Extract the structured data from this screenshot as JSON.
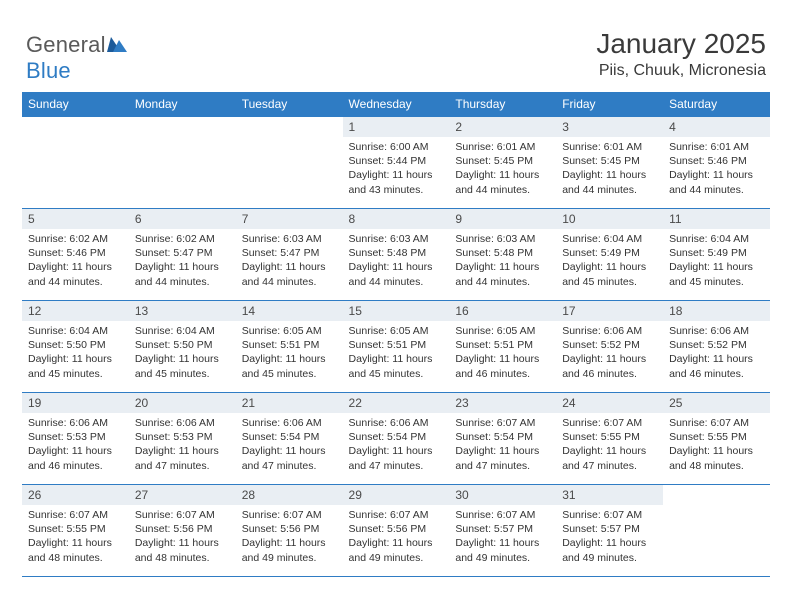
{
  "logo": {
    "word1": "General",
    "word2": "Blue"
  },
  "title": "January 2025",
  "location": "Piis, Chuuk, Micronesia",
  "colors": {
    "header_bg": "#2f7cc4",
    "header_text": "#ffffff",
    "daynum_bg": "#e9eef3",
    "rule": "#2f7cc4",
    "body_text": "#333333",
    "logo_gray": "#5a5a5a",
    "logo_blue": "#2f7cc4"
  },
  "weekdays": [
    "Sunday",
    "Monday",
    "Tuesday",
    "Wednesday",
    "Thursday",
    "Friday",
    "Saturday"
  ],
  "weeks": [
    [
      {
        "n": "",
        "sunrise": "",
        "sunset": "",
        "daylight": ""
      },
      {
        "n": "",
        "sunrise": "",
        "sunset": "",
        "daylight": ""
      },
      {
        "n": "",
        "sunrise": "",
        "sunset": "",
        "daylight": ""
      },
      {
        "n": "1",
        "sunrise": "Sunrise: 6:00 AM",
        "sunset": "Sunset: 5:44 PM",
        "daylight": "Daylight: 11 hours and 43 minutes."
      },
      {
        "n": "2",
        "sunrise": "Sunrise: 6:01 AM",
        "sunset": "Sunset: 5:45 PM",
        "daylight": "Daylight: 11 hours and 44 minutes."
      },
      {
        "n": "3",
        "sunrise": "Sunrise: 6:01 AM",
        "sunset": "Sunset: 5:45 PM",
        "daylight": "Daylight: 11 hours and 44 minutes."
      },
      {
        "n": "4",
        "sunrise": "Sunrise: 6:01 AM",
        "sunset": "Sunset: 5:46 PM",
        "daylight": "Daylight: 11 hours and 44 minutes."
      }
    ],
    [
      {
        "n": "5",
        "sunrise": "Sunrise: 6:02 AM",
        "sunset": "Sunset: 5:46 PM",
        "daylight": "Daylight: 11 hours and 44 minutes."
      },
      {
        "n": "6",
        "sunrise": "Sunrise: 6:02 AM",
        "sunset": "Sunset: 5:47 PM",
        "daylight": "Daylight: 11 hours and 44 minutes."
      },
      {
        "n": "7",
        "sunrise": "Sunrise: 6:03 AM",
        "sunset": "Sunset: 5:47 PM",
        "daylight": "Daylight: 11 hours and 44 minutes."
      },
      {
        "n": "8",
        "sunrise": "Sunrise: 6:03 AM",
        "sunset": "Sunset: 5:48 PM",
        "daylight": "Daylight: 11 hours and 44 minutes."
      },
      {
        "n": "9",
        "sunrise": "Sunrise: 6:03 AM",
        "sunset": "Sunset: 5:48 PM",
        "daylight": "Daylight: 11 hours and 44 minutes."
      },
      {
        "n": "10",
        "sunrise": "Sunrise: 6:04 AM",
        "sunset": "Sunset: 5:49 PM",
        "daylight": "Daylight: 11 hours and 45 minutes."
      },
      {
        "n": "11",
        "sunrise": "Sunrise: 6:04 AM",
        "sunset": "Sunset: 5:49 PM",
        "daylight": "Daylight: 11 hours and 45 minutes."
      }
    ],
    [
      {
        "n": "12",
        "sunrise": "Sunrise: 6:04 AM",
        "sunset": "Sunset: 5:50 PM",
        "daylight": "Daylight: 11 hours and 45 minutes."
      },
      {
        "n": "13",
        "sunrise": "Sunrise: 6:04 AM",
        "sunset": "Sunset: 5:50 PM",
        "daylight": "Daylight: 11 hours and 45 minutes."
      },
      {
        "n": "14",
        "sunrise": "Sunrise: 6:05 AM",
        "sunset": "Sunset: 5:51 PM",
        "daylight": "Daylight: 11 hours and 45 minutes."
      },
      {
        "n": "15",
        "sunrise": "Sunrise: 6:05 AM",
        "sunset": "Sunset: 5:51 PM",
        "daylight": "Daylight: 11 hours and 45 minutes."
      },
      {
        "n": "16",
        "sunrise": "Sunrise: 6:05 AM",
        "sunset": "Sunset: 5:51 PM",
        "daylight": "Daylight: 11 hours and 46 minutes."
      },
      {
        "n": "17",
        "sunrise": "Sunrise: 6:06 AM",
        "sunset": "Sunset: 5:52 PM",
        "daylight": "Daylight: 11 hours and 46 minutes."
      },
      {
        "n": "18",
        "sunrise": "Sunrise: 6:06 AM",
        "sunset": "Sunset: 5:52 PM",
        "daylight": "Daylight: 11 hours and 46 minutes."
      }
    ],
    [
      {
        "n": "19",
        "sunrise": "Sunrise: 6:06 AM",
        "sunset": "Sunset: 5:53 PM",
        "daylight": "Daylight: 11 hours and 46 minutes."
      },
      {
        "n": "20",
        "sunrise": "Sunrise: 6:06 AM",
        "sunset": "Sunset: 5:53 PM",
        "daylight": "Daylight: 11 hours and 47 minutes."
      },
      {
        "n": "21",
        "sunrise": "Sunrise: 6:06 AM",
        "sunset": "Sunset: 5:54 PM",
        "daylight": "Daylight: 11 hours and 47 minutes."
      },
      {
        "n": "22",
        "sunrise": "Sunrise: 6:06 AM",
        "sunset": "Sunset: 5:54 PM",
        "daylight": "Daylight: 11 hours and 47 minutes."
      },
      {
        "n": "23",
        "sunrise": "Sunrise: 6:07 AM",
        "sunset": "Sunset: 5:54 PM",
        "daylight": "Daylight: 11 hours and 47 minutes."
      },
      {
        "n": "24",
        "sunrise": "Sunrise: 6:07 AM",
        "sunset": "Sunset: 5:55 PM",
        "daylight": "Daylight: 11 hours and 47 minutes."
      },
      {
        "n": "25",
        "sunrise": "Sunrise: 6:07 AM",
        "sunset": "Sunset: 5:55 PM",
        "daylight": "Daylight: 11 hours and 48 minutes."
      }
    ],
    [
      {
        "n": "26",
        "sunrise": "Sunrise: 6:07 AM",
        "sunset": "Sunset: 5:55 PM",
        "daylight": "Daylight: 11 hours and 48 minutes."
      },
      {
        "n": "27",
        "sunrise": "Sunrise: 6:07 AM",
        "sunset": "Sunset: 5:56 PM",
        "daylight": "Daylight: 11 hours and 48 minutes."
      },
      {
        "n": "28",
        "sunrise": "Sunrise: 6:07 AM",
        "sunset": "Sunset: 5:56 PM",
        "daylight": "Daylight: 11 hours and 49 minutes."
      },
      {
        "n": "29",
        "sunrise": "Sunrise: 6:07 AM",
        "sunset": "Sunset: 5:56 PM",
        "daylight": "Daylight: 11 hours and 49 minutes."
      },
      {
        "n": "30",
        "sunrise": "Sunrise: 6:07 AM",
        "sunset": "Sunset: 5:57 PM",
        "daylight": "Daylight: 11 hours and 49 minutes."
      },
      {
        "n": "31",
        "sunrise": "Sunrise: 6:07 AM",
        "sunset": "Sunset: 5:57 PM",
        "daylight": "Daylight: 11 hours and 49 minutes."
      },
      {
        "n": "",
        "sunrise": "",
        "sunset": "",
        "daylight": ""
      }
    ]
  ]
}
